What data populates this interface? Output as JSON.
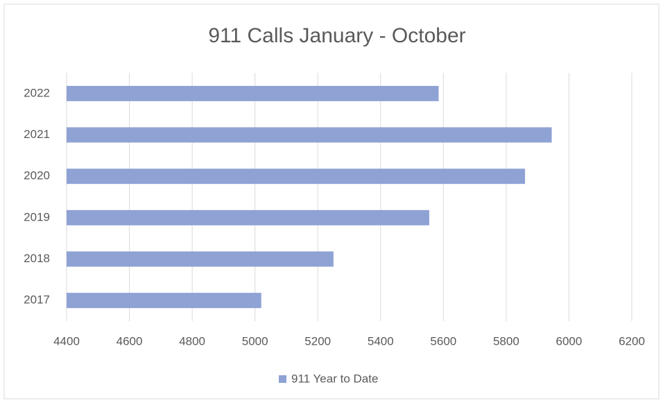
{
  "chart_data": {
    "type": "barh",
    "title": "911 Calls January - October",
    "categories": [
      "2017",
      "2018",
      "2019",
      "2020",
      "2021",
      "2022"
    ],
    "series": [
      {
        "name": "911 Year to Date",
        "color": "#8fa2d4",
        "values": [
          5020,
          5250,
          5555,
          5860,
          5945,
          5585
        ]
      }
    ],
    "xlim": [
      4400,
      6200
    ],
    "xticks": [
      4400,
      4600,
      4800,
      5000,
      5200,
      5400,
      5600,
      5800,
      6000,
      6200
    ],
    "grid": true,
    "legend": "bottom"
  }
}
